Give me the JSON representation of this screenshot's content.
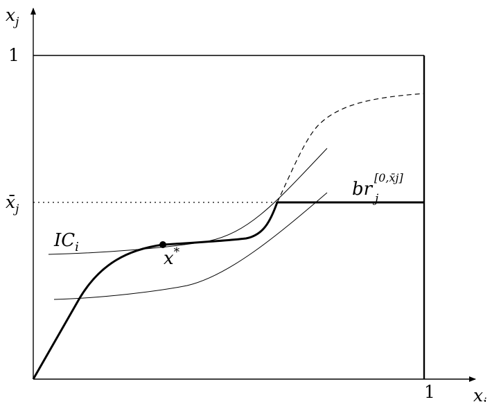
{
  "axes": {
    "x_label": "x",
    "x_label_sub": "i",
    "y_label": "x",
    "y_label_sub": "j",
    "x_tick": "1",
    "y_tick": "1",
    "ybar_label": "x̄",
    "ybar_label_sub": "j"
  },
  "labels": {
    "ic_main": "IC",
    "ic_sub": "i",
    "xstar_main": "x",
    "xstar_sup": "*",
    "br_main": "br",
    "br_sub": "j",
    "br_sup": "[0,x̄j]"
  },
  "styles": {
    "ink": "#000000",
    "background": "#ffffff"
  }
}
